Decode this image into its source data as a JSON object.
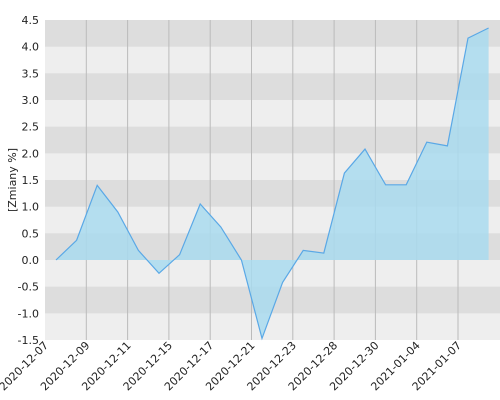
{
  "chart_data": {
    "type": "area",
    "y_label": "[Zmiany %]",
    "xtick_labels": [
      "2020-12-07",
      "2020-12-09",
      "2020-12-11",
      "2020-12-15",
      "2020-12-17",
      "2020-12-21",
      "2020-12-23",
      "2020-12-28",
      "2020-12-30",
      "2021-01-04",
      "2021-01-07"
    ],
    "values": [
      0.0,
      0.37,
      1.4,
      0.9,
      0.18,
      -0.25,
      0.1,
      1.05,
      0.62,
      0.0,
      -1.47,
      -0.42,
      0.18,
      0.13,
      1.63,
      2.08,
      1.41,
      1.41,
      2.21,
      2.14,
      4.16,
      4.35
    ],
    "color": "#5aa8e6",
    "fill": "#a9dbef",
    "ylim": [
      -1.5,
      4.5
    ],
    "yticks": [
      -1.5,
      {
        "value": -1,
        "label": "-1.0"
      },
      -0.5,
      {
        "value": 0,
        "label": "0.0"
      },
      0.5,
      {
        "value": 1,
        "label": "1.0"
      },
      1.5,
      {
        "value": 2,
        "label": "2.0"
      },
      2.5,
      {
        "value": 3,
        "label": "3.0"
      },
      3.5,
      {
        "value": 4,
        "label": "4.0"
      },
      4.5
    ],
    "grid": true
  }
}
